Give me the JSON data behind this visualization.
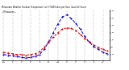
{
  "title": "Milwaukee Weather Outdoor Temperature (vs) THSW Index per Hour (Last 24 Hours)",
  "title2": "-- Milwaukee --",
  "hours": [
    0,
    1,
    2,
    3,
    4,
    5,
    6,
    7,
    8,
    9,
    10,
    11,
    12,
    13,
    14,
    15,
    16,
    17,
    18,
    19,
    20,
    21,
    22,
    23
  ],
  "temp": [
    33,
    32,
    31,
    30,
    30,
    29,
    30,
    31,
    34,
    40,
    47,
    54,
    60,
    65,
    67,
    66,
    63,
    58,
    52,
    47,
    43,
    40,
    37,
    35
  ],
  "thsw": [
    30,
    29,
    28,
    27,
    26,
    25,
    26,
    27,
    30,
    37,
    48,
    60,
    72,
    82,
    85,
    80,
    73,
    65,
    55,
    47,
    41,
    37,
    33,
    31
  ],
  "temp_color": "#cc0000",
  "thsw_color": "#0000cc",
  "bg_color": "#ffffff",
  "plot_bg": "#ffffff",
  "grid_color": "#888888",
  "ylim_min": 22,
  "ylim_max": 92,
  "ytick_vals": [
    30,
    40,
    50,
    60,
    70,
    80,
    90
  ],
  "ytick_labels": [
    "30",
    "40",
    "50",
    "60",
    "70",
    "80",
    "90"
  ],
  "xtick_positions": [
    0,
    2,
    4,
    6,
    8,
    10,
    12,
    14,
    16,
    18,
    20,
    22
  ],
  "xtick_labels": [
    "12a",
    "2",
    "4",
    "6",
    "8",
    "10",
    "12p",
    "2",
    "4",
    "6",
    "8",
    "10"
  ]
}
